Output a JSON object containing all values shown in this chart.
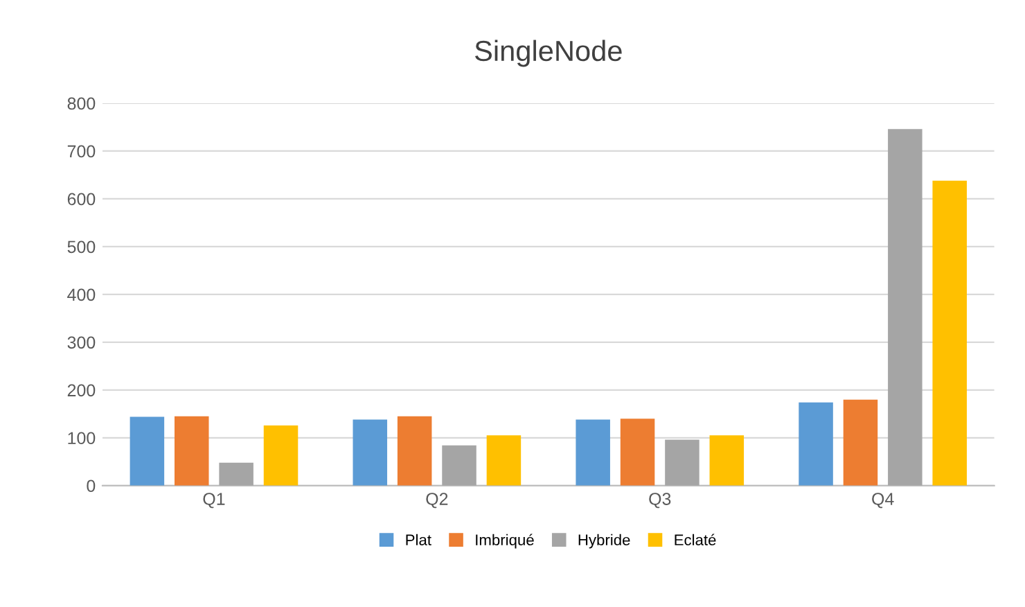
{
  "chart_data": {
    "type": "bar",
    "title": "SingleNode",
    "categories": [
      "Q1",
      "Q2",
      "Q3",
      "Q4"
    ],
    "series": [
      {
        "name": "Plat",
        "color": "#5b9bd5",
        "values": [
          144,
          138,
          138,
          174
        ]
      },
      {
        "name": "Imbriqué",
        "color": "#ed7d31",
        "values": [
          145,
          145,
          140,
          180
        ]
      },
      {
        "name": "Hybride",
        "color": "#a5a5a5",
        "values": [
          48,
          84,
          96,
          746
        ]
      },
      {
        "name": "Eclaté",
        "color": "#ffc000",
        "values": [
          126,
          105,
          105,
          638
        ]
      }
    ],
    "ylim": [
      0,
      800
    ],
    "yticks": [
      0,
      100,
      200,
      300,
      400,
      500,
      600,
      700,
      800
    ],
    "grid": "y",
    "legend": "bottom"
  }
}
